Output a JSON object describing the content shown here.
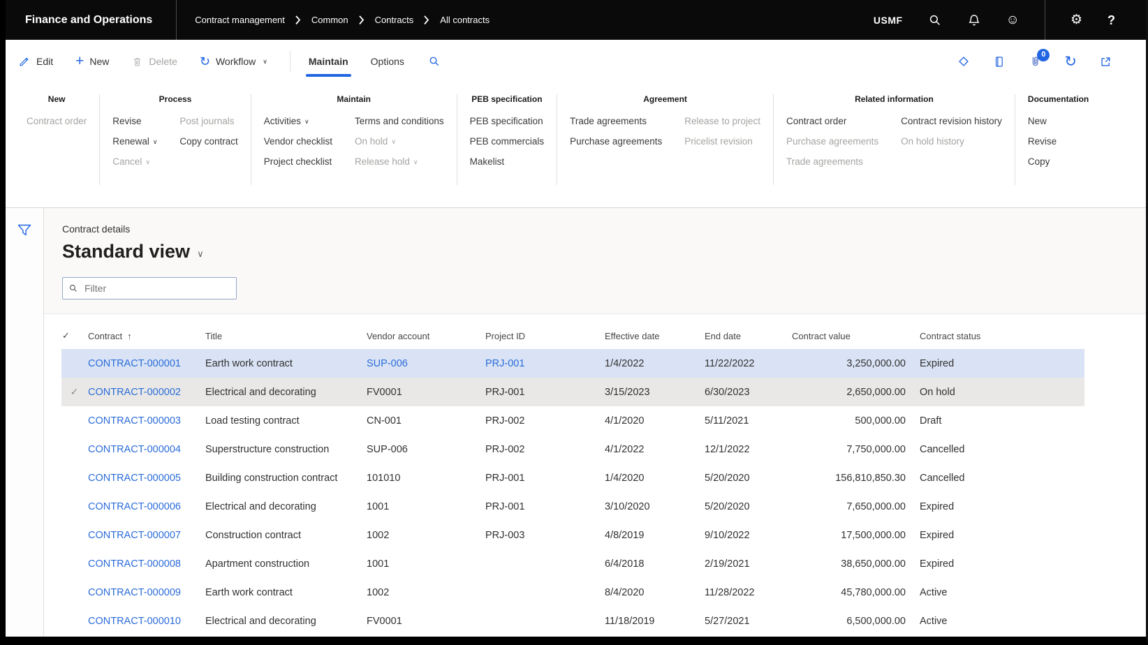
{
  "topbar": {
    "app_title": "Finance and Operations",
    "breadcrumb": [
      "Contract management",
      "Common",
      "Contracts",
      "All contracts"
    ],
    "company": "USMF",
    "icons": [
      "search-icon",
      "notifications-bell-icon",
      "feedback-smiley-icon",
      "settings-gear-icon",
      "help-icon"
    ]
  },
  "action_pane": {
    "buttons": [
      {
        "label": "Edit",
        "icon": "edit-pencil-icon",
        "disabled": false
      },
      {
        "label": "New",
        "icon": "plus-icon",
        "disabled": false
      },
      {
        "label": "Delete",
        "icon": "trash-icon",
        "disabled": true
      },
      {
        "label": "Workflow",
        "icon": "workflow-sync-icon",
        "disabled": false,
        "chevron": true
      }
    ],
    "tabs": [
      {
        "label": "Maintain",
        "active": true
      },
      {
        "label": "Options",
        "active": false
      }
    ],
    "attachments_badge": "0",
    "right_icons": [
      "power-apps-icon",
      "office-book-icon",
      "attachments-paperclip-icon",
      "refresh-icon",
      "open-in-new-window-icon"
    ]
  },
  "ribbon": {
    "groups": [
      {
        "title": "New",
        "columns": [
          [
            {
              "label": "Contract order",
              "disabled": true
            }
          ]
        ]
      },
      {
        "title": "Process",
        "columns": [
          [
            {
              "label": "Revise"
            },
            {
              "label": "Renewal",
              "chevron": true
            },
            {
              "label": "Cancel",
              "chevron": true,
              "disabled": true
            }
          ],
          [
            {
              "label": "Post journals",
              "disabled": true
            },
            {
              "label": "Copy contract"
            }
          ]
        ]
      },
      {
        "title": "Maintain",
        "columns": [
          [
            {
              "label": "Activities",
              "chevron": true
            },
            {
              "label": "Vendor checklist"
            },
            {
              "label": "Project checklist"
            }
          ],
          [
            {
              "label": "Terms and conditions"
            },
            {
              "label": "On hold",
              "chevron": true,
              "disabled": true
            },
            {
              "label": "Release hold",
              "chevron": true,
              "disabled": true
            }
          ]
        ]
      },
      {
        "title": "PEB specification",
        "columns": [
          [
            {
              "label": "PEB specification"
            },
            {
              "label": "PEB commercials"
            },
            {
              "label": "Makelist"
            }
          ]
        ]
      },
      {
        "title": "Agreement",
        "columns": [
          [
            {
              "label": "Trade agreements"
            },
            {
              "label": "Purchase agreements"
            }
          ],
          [
            {
              "label": "Release to project",
              "disabled": true
            },
            {
              "label": "Pricelist revision",
              "disabled": true
            }
          ]
        ]
      },
      {
        "title": "Related information",
        "columns": [
          [
            {
              "label": "Contract order"
            },
            {
              "label": "Purchase agreements",
              "disabled": true
            },
            {
              "label": "Trade agreements",
              "disabled": true
            }
          ],
          [
            {
              "label": "Contract revision history"
            },
            {
              "label": "On hold history",
              "disabled": true
            }
          ]
        ]
      },
      {
        "title": "Documentation",
        "columns": [
          [
            {
              "label": "New"
            },
            {
              "label": "Revise"
            },
            {
              "label": "Copy"
            }
          ]
        ]
      }
    ]
  },
  "content": {
    "caption": "Contract details",
    "view_title": "Standard view",
    "filter_placeholder": "Filter",
    "grid": {
      "columns": [
        "Contract",
        "Title",
        "Vendor account",
        "Project ID",
        "Effective date",
        "End date",
        "Contract value",
        "Contract status"
      ],
      "sorted_by": "Contract",
      "sort_direction": "ascending",
      "rows": [
        {
          "contract": "CONTRACT-000001",
          "title": "Earth work contract",
          "vendor": "SUP-006",
          "vendor_link": true,
          "project": "PRJ-001",
          "project_link": true,
          "effective": "1/4/2022",
          "end": "11/22/2022",
          "value": "3,250,000.00",
          "status": "Expired",
          "state": "active",
          "checked": false
        },
        {
          "contract": "CONTRACT-000002",
          "title": "Electrical and decorating",
          "vendor": "FV0001",
          "project": "PRJ-001",
          "effective": "3/15/2023",
          "end": "6/30/2023",
          "value": "2,650,000.00",
          "status": "On hold",
          "state": "marked",
          "checked": true
        },
        {
          "contract": "CONTRACT-000003",
          "title": "Load testing contract",
          "vendor": "CN-001",
          "project": "PRJ-002",
          "effective": "4/1/2020",
          "end": "5/11/2021",
          "value": "500,000.00",
          "status": "Draft",
          "state": "",
          "checked": false
        },
        {
          "contract": "CONTRACT-000004",
          "title": "Superstructure construction",
          "vendor": "SUP-006",
          "project": "PRJ-002",
          "effective": "4/1/2022",
          "end": "12/1/2022",
          "value": "7,750,000.00",
          "status": "Cancelled",
          "state": "",
          "checked": false
        },
        {
          "contract": "CONTRACT-000005",
          "title": "Building construction contract",
          "vendor": "101010",
          "project": "PRJ-001",
          "effective": "1/4/2020",
          "end": "5/20/2020",
          "value": "156,810,850.30",
          "status": "Cancelled",
          "state": "",
          "checked": false
        },
        {
          "contract": "CONTRACT-000006",
          "title": "Electrical and decorating",
          "vendor": "1001",
          "project": "PRJ-001",
          "effective": "3/10/2020",
          "end": "5/20/2020",
          "value": "7,650,000.00",
          "status": "Expired",
          "state": "",
          "checked": false
        },
        {
          "contract": "CONTRACT-000007",
          "title": "Construction contract",
          "vendor": "1002",
          "project": "PRJ-003",
          "effective": "4/8/2019",
          "end": "9/10/2022",
          "value": "17,500,000.00",
          "status": "Expired",
          "state": "",
          "checked": false
        },
        {
          "contract": "CONTRACT-000008",
          "title": "Apartment construction",
          "vendor": "1001",
          "project": "",
          "effective": "6/4/2018",
          "end": "2/19/2021",
          "value": "38,650,000.00",
          "status": "Expired",
          "state": "",
          "checked": false
        },
        {
          "contract": "CONTRACT-000009",
          "title": "Earth work contract",
          "vendor": "1002",
          "project": "",
          "effective": "8/4/2020",
          "end": "11/28/2022",
          "value": "45,780,000.00",
          "status": "Active",
          "state": "",
          "checked": false
        },
        {
          "contract": "CONTRACT-000010",
          "title": "Electrical and decorating",
          "vendor": "FV0001",
          "project": "",
          "effective": "11/18/2019",
          "end": "5/27/2021",
          "value": "6,500,000.00",
          "status": "Active",
          "state": "",
          "checked": false
        }
      ]
    }
  },
  "colors": {
    "accent": "#2266E3",
    "link": "#2B6CD9",
    "topbar_bg": "#0A0A0A",
    "row_selected_bg": "#D9E3F5",
    "row_marked_bg": "#E9E8E6",
    "panel_bg": "#FAF9F8",
    "disabled_text": "#A6A4A2",
    "text": "#323130"
  }
}
